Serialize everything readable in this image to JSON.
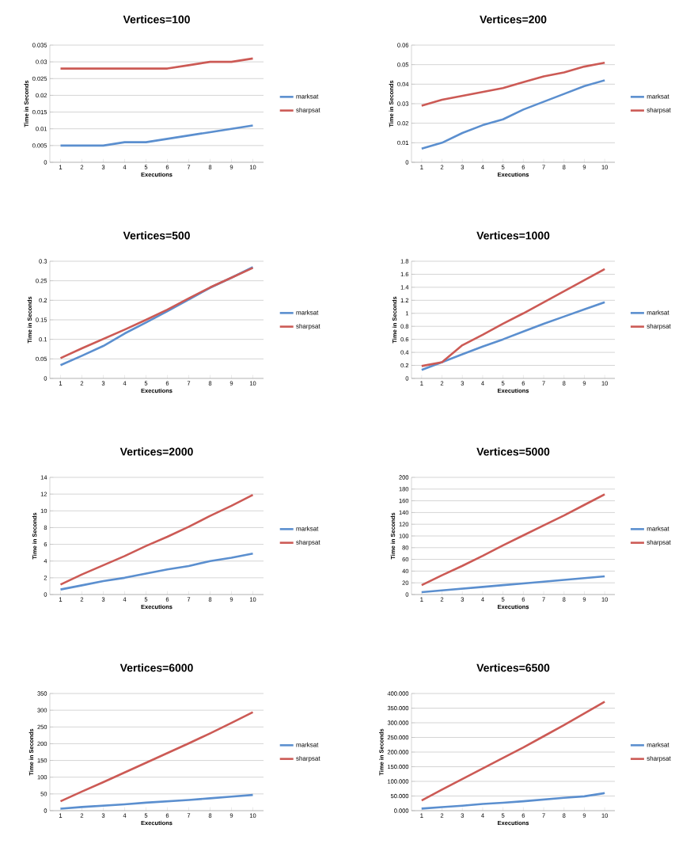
{
  "chart_data": [
    {
      "type": "line",
      "title": "Vertices=100",
      "xlabel": "Executions",
      "ylabel": "Time in Seconds",
      "categories": [
        "1",
        "2",
        "3",
        "4",
        "5",
        "6",
        "7",
        "8",
        "9",
        "10"
      ],
      "ylim": [
        0,
        0.035
      ],
      "yticks": [
        0,
        0.005,
        0.01,
        0.015,
        0.02,
        0.025,
        0.03,
        0.035
      ],
      "grid": "y",
      "legend": "right",
      "series": [
        {
          "name": "marksat",
          "color": "#5b8fcf",
          "values": [
            0.005,
            0.005,
            0.005,
            0.006,
            0.006,
            0.007,
            0.008,
            0.009,
            0.01,
            0.011
          ]
        },
        {
          "name": "sharpsat",
          "color": "#cc5a55",
          "values": [
            0.028,
            0.028,
            0.028,
            0.028,
            0.028,
            0.028,
            0.029,
            0.03,
            0.03,
            0.031
          ]
        }
      ]
    },
    {
      "type": "line",
      "title": "Vertices=200",
      "xlabel": "Executions",
      "ylabel": "Time in Seconds",
      "categories": [
        "1",
        "2",
        "3",
        "4",
        "5",
        "6",
        "7",
        "8",
        "9",
        "10"
      ],
      "ylim": [
        0,
        0.06
      ],
      "yticks": [
        0,
        0.01,
        0.02,
        0.03,
        0.04,
        0.05,
        0.06
      ],
      "grid": "y",
      "legend": "right",
      "series": [
        {
          "name": "marksat",
          "color": "#5b8fcf",
          "values": [
            0.007,
            0.01,
            0.015,
            0.019,
            0.022,
            0.027,
            0.031,
            0.035,
            0.039,
            0.042
          ]
        },
        {
          "name": "sharpsat",
          "color": "#cc5a55",
          "values": [
            0.029,
            0.032,
            0.034,
            0.036,
            0.038,
            0.041,
            0.044,
            0.046,
            0.049,
            0.051
          ]
        }
      ]
    },
    {
      "type": "line",
      "title": "Vertices=500",
      "xlabel": "Executions",
      "ylabel": "Time in Seconds",
      "categories": [
        "1",
        "2",
        "3",
        "4",
        "5",
        "6",
        "7",
        "8",
        "9",
        "10"
      ],
      "ylim": [
        0,
        0.3
      ],
      "yticks": [
        0,
        0.05,
        0.1,
        0.15,
        0.2,
        0.25,
        0.3
      ],
      "grid": "y",
      "legend": "right",
      "series": [
        {
          "name": "marksat",
          "color": "#5b8fcf",
          "values": [
            0.034,
            0.058,
            0.083,
            0.115,
            0.143,
            0.172,
            0.202,
            0.232,
            0.258,
            0.285
          ]
        },
        {
          "name": "sharpsat",
          "color": "#cc5a55",
          "values": [
            0.052,
            0.077,
            0.101,
            0.125,
            0.15,
            0.176,
            0.205,
            0.233,
            0.258,
            0.283
          ]
        }
      ]
    },
    {
      "type": "line",
      "title": "Vertices=1000",
      "xlabel": "Executions",
      "ylabel": "Time in Seconds",
      "categories": [
        "1",
        "2",
        "3",
        "4",
        "5",
        "6",
        "7",
        "8",
        "9",
        "10"
      ],
      "ylim": [
        0,
        1.8
      ],
      "yticks": [
        0,
        0.2,
        0.4,
        0.6,
        0.8,
        1,
        1.2,
        1.4,
        1.6,
        1.8
      ],
      "grid": "y",
      "legend": "right",
      "series": [
        {
          "name": "marksat",
          "color": "#5b8fcf",
          "values": [
            0.13,
            0.25,
            0.37,
            0.49,
            0.6,
            0.72,
            0.84,
            0.95,
            1.06,
            1.17
          ]
        },
        {
          "name": "sharpsat",
          "color": "#cc5a55",
          "values": [
            0.19,
            0.25,
            0.51,
            0.67,
            0.84,
            1.0,
            1.17,
            1.34,
            1.51,
            1.68
          ]
        }
      ]
    },
    {
      "type": "line",
      "title": "Vertices=2000",
      "xlabel": "Executions",
      "ylabel": "Time in Seconds",
      "categories": [
        "1",
        "2",
        "3",
        "4",
        "5",
        "6",
        "7",
        "8",
        "9",
        "10"
      ],
      "ylim": [
        0,
        14
      ],
      "yticks": [
        0,
        2,
        4,
        6,
        8,
        10,
        12,
        14
      ],
      "grid": "y",
      "legend": "right",
      "series": [
        {
          "name": "marksat",
          "color": "#5b8fcf",
          "values": [
            0.6,
            1.1,
            1.6,
            2.0,
            2.5,
            3.0,
            3.4,
            4.0,
            4.4,
            4.9
          ]
        },
        {
          "name": "sharpsat",
          "color": "#cc5a55",
          "values": [
            1.2,
            2.4,
            3.5,
            4.6,
            5.8,
            6.9,
            8.1,
            9.4,
            10.6,
            11.9
          ]
        }
      ]
    },
    {
      "type": "line",
      "title": "Vertices=5000",
      "xlabel": "Executions",
      "ylabel": "Time in Seconds",
      "categories": [
        "1",
        "2",
        "3",
        "4",
        "5",
        "6",
        "7",
        "8",
        "9",
        "10"
      ],
      "ylim": [
        0,
        200
      ],
      "yticks": [
        0,
        20,
        40,
        60,
        80,
        100,
        120,
        140,
        160,
        180,
        200
      ],
      "grid": "y",
      "legend": "right",
      "series": [
        {
          "name": "marksat",
          "color": "#5b8fcf",
          "values": [
            4,
            7,
            10,
            13,
            16,
            19,
            22,
            25,
            28,
            31
          ]
        },
        {
          "name": "sharpsat",
          "color": "#cc5a55",
          "values": [
            16,
            33,
            49,
            66,
            84,
            101,
            118,
            135,
            153,
            171
          ]
        }
      ]
    },
    {
      "type": "line",
      "title": "Vertices=6000",
      "xlabel": "Executions",
      "ylabel": "Time in Seconds",
      "categories": [
        "1",
        "2",
        "3",
        "4",
        "5",
        "6",
        "7",
        "8",
        "9",
        "10"
      ],
      "ylim": [
        0,
        350
      ],
      "yticks": [
        0,
        50,
        100,
        150,
        200,
        250,
        300,
        350
      ],
      "grid": "y",
      "legend": "right",
      "series": [
        {
          "name": "marksat",
          "color": "#5b8fcf",
          "values": [
            6,
            11,
            15,
            19,
            24,
            28,
            32,
            37,
            42,
            47
          ]
        },
        {
          "name": "sharpsat",
          "color": "#cc5a55",
          "values": [
            28,
            57,
            85,
            114,
            143,
            172,
            201,
            231,
            262,
            294
          ]
        }
      ]
    },
    {
      "type": "line",
      "title": "Vertices=6500",
      "xlabel": "Executions",
      "ylabel": "Time in Seconds",
      "categories": [
        "1",
        "2",
        "3",
        "4",
        "5",
        "6",
        "7",
        "8",
        "9",
        "10"
      ],
      "ylim": [
        0,
        400
      ],
      "yticks": [
        {
          "value": 0,
          "label": "0.000"
        },
        {
          "value": 50,
          "label": "50.000"
        },
        {
          "value": 100,
          "label": "100.000"
        },
        {
          "value": 150,
          "label": "150.000"
        },
        {
          "value": 200,
          "label": "200.000"
        },
        {
          "value": 250,
          "label": "250.000"
        },
        {
          "value": 300,
          "label": "300.000"
        },
        {
          "value": 350,
          "label": "350.000"
        },
        {
          "value": 400,
          "label": "400.000"
        }
      ],
      "grid": "y",
      "legend": "right",
      "series": [
        {
          "name": "marksat",
          "color": "#5b8fcf",
          "values": [
            7,
            12,
            17,
            23,
            27,
            32,
            38,
            44,
            49,
            60
          ]
        },
        {
          "name": "sharpsat",
          "color": "#cc5a55",
          "values": [
            35,
            72,
            108,
            144,
            180,
            216,
            254,
            292,
            332,
            372
          ]
        }
      ]
    }
  ]
}
